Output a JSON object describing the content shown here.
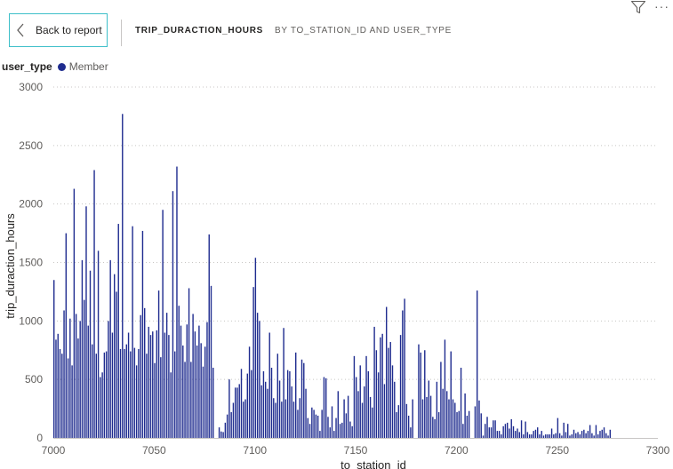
{
  "header": {
    "back_label": "Back to report",
    "title": "TRIP_DURACTION_HOURS",
    "subtitle": "BY TO_STATION_ID AND USER_TYPE",
    "back_icon": "chevron-left-icon",
    "filter_icon": "filter-icon",
    "more_icon": "more-options-icon",
    "more_glyph": "···"
  },
  "legend": {
    "title": "user_type",
    "items": [
      {
        "label": "Member",
        "color": "#1f2c8f"
      }
    ]
  },
  "chart_data": {
    "type": "bar",
    "xlabel": "to_station_id",
    "ylabel": "trip_duraction_hours",
    "xlim": [
      7000,
      7300
    ],
    "ylim": [
      0,
      3000
    ],
    "xticks": [
      7000,
      7050,
      7100,
      7150,
      7200,
      7250,
      7300
    ],
    "yticks": [
      0,
      500,
      1000,
      1500,
      2000,
      2500,
      3000
    ],
    "grid": true,
    "series": [
      {
        "name": "Member",
        "color": "#1f2c8f",
        "points": [
          [
            7000,
            1350
          ],
          [
            7001,
            840
          ],
          [
            7002,
            890
          ],
          [
            7003,
            760
          ],
          [
            7004,
            720
          ],
          [
            7005,
            1090
          ],
          [
            7006,
            1750
          ],
          [
            7007,
            680
          ],
          [
            7008,
            1020
          ],
          [
            7009,
            620
          ],
          [
            7010,
            2130
          ],
          [
            7011,
            1060
          ],
          [
            7012,
            850
          ],
          [
            7013,
            1000
          ],
          [
            7014,
            1520
          ],
          [
            7015,
            1180
          ],
          [
            7016,
            1980
          ],
          [
            7017,
            960
          ],
          [
            7018,
            1430
          ],
          [
            7019,
            800
          ],
          [
            7020,
            2290
          ],
          [
            7021,
            720
          ],
          [
            7022,
            1600
          ],
          [
            7023,
            520
          ],
          [
            7024,
            560
          ],
          [
            7025,
            730
          ],
          [
            7026,
            740
          ],
          [
            7027,
            1000
          ],
          [
            7028,
            1520
          ],
          [
            7029,
            900
          ],
          [
            7030,
            1400
          ],
          [
            7031,
            1250
          ],
          [
            7032,
            1830
          ],
          [
            7033,
            760
          ],
          [
            7034,
            2770
          ],
          [
            7035,
            760
          ],
          [
            7036,
            800
          ],
          [
            7037,
            900
          ],
          [
            7038,
            740
          ],
          [
            7039,
            1810
          ],
          [
            7040,
            770
          ],
          [
            7041,
            620
          ],
          [
            7042,
            760
          ],
          [
            7043,
            1050
          ],
          [
            7044,
            1770
          ],
          [
            7045,
            1110
          ],
          [
            7046,
            720
          ],
          [
            7047,
            950
          ],
          [
            7048,
            880
          ],
          [
            7049,
            910
          ],
          [
            7050,
            640
          ],
          [
            7051,
            920
          ],
          [
            7052,
            1260
          ],
          [
            7053,
            690
          ],
          [
            7054,
            1950
          ],
          [
            7055,
            900
          ],
          [
            7056,
            1070
          ],
          [
            7057,
            880
          ],
          [
            7058,
            560
          ],
          [
            7059,
            2110
          ],
          [
            7060,
            740
          ],
          [
            7061,
            2320
          ],
          [
            7062,
            1130
          ],
          [
            7063,
            960
          ],
          [
            7064,
            790
          ],
          [
            7065,
            650
          ],
          [
            7066,
            970
          ],
          [
            7067,
            1280
          ],
          [
            7068,
            650
          ],
          [
            7069,
            1060
          ],
          [
            7070,
            910
          ],
          [
            7071,
            790
          ],
          [
            7072,
            960
          ],
          [
            7073,
            810
          ],
          [
            7074,
            610
          ],
          [
            7075,
            780
          ],
          [
            7076,
            990
          ],
          [
            7077,
            1740
          ],
          [
            7078,
            1300
          ],
          [
            7079,
            600
          ],
          [
            7082,
            90
          ],
          [
            7083,
            55
          ],
          [
            7084,
            50
          ],
          [
            7085,
            130
          ],
          [
            7086,
            200
          ],
          [
            7087,
            500
          ],
          [
            7088,
            220
          ],
          [
            7089,
            300
          ],
          [
            7090,
            430
          ],
          [
            7091,
            430
          ],
          [
            7092,
            460
          ],
          [
            7093,
            590
          ],
          [
            7094,
            310
          ],
          [
            7095,
            330
          ],
          [
            7096,
            550
          ],
          [
            7097,
            780
          ],
          [
            7098,
            580
          ],
          [
            7099,
            1290
          ],
          [
            7100,
            1540
          ],
          [
            7101,
            1070
          ],
          [
            7102,
            1000
          ],
          [
            7103,
            450
          ],
          [
            7104,
            570
          ],
          [
            7105,
            480
          ],
          [
            7106,
            420
          ],
          [
            7107,
            900
          ],
          [
            7108,
            600
          ],
          [
            7109,
            340
          ],
          [
            7110,
            300
          ],
          [
            7111,
            720
          ],
          [
            7112,
            490
          ],
          [
            7113,
            310
          ],
          [
            7114,
            940
          ],
          [
            7115,
            330
          ],
          [
            7116,
            580
          ],
          [
            7117,
            570
          ],
          [
            7118,
            440
          ],
          [
            7119,
            310
          ],
          [
            7120,
            730
          ],
          [
            7121,
            240
          ],
          [
            7122,
            340
          ],
          [
            7123,
            670
          ],
          [
            7124,
            640
          ],
          [
            7125,
            420
          ],
          [
            7126,
            170
          ],
          [
            7127,
            120
          ],
          [
            7128,
            260
          ],
          [
            7129,
            240
          ],
          [
            7130,
            200
          ],
          [
            7131,
            190
          ],
          [
            7132,
            60
          ],
          [
            7133,
            240
          ],
          [
            7134,
            520
          ],
          [
            7135,
            510
          ],
          [
            7136,
            180
          ],
          [
            7137,
            90
          ],
          [
            7138,
            270
          ],
          [
            7139,
            60
          ],
          [
            7140,
            170
          ],
          [
            7141,
            400
          ],
          [
            7142,
            120
          ],
          [
            7143,
            130
          ],
          [
            7144,
            330
          ],
          [
            7145,
            210
          ],
          [
            7146,
            360
          ],
          [
            7147,
            140
          ],
          [
            7148,
            100
          ],
          [
            7149,
            700
          ],
          [
            7150,
            520
          ],
          [
            7151,
            400
          ],
          [
            7152,
            620
          ],
          [
            7153,
            300
          ],
          [
            7154,
            440
          ],
          [
            7155,
            700
          ],
          [
            7156,
            570
          ],
          [
            7157,
            350
          ],
          [
            7158,
            260
          ],
          [
            7159,
            950
          ],
          [
            7160,
            750
          ],
          [
            7161,
            560
          ],
          [
            7162,
            860
          ],
          [
            7163,
            890
          ],
          [
            7164,
            460
          ],
          [
            7165,
            1120
          ],
          [
            7166,
            770
          ],
          [
            7167,
            820
          ],
          [
            7168,
            620
          ],
          [
            7169,
            480
          ],
          [
            7170,
            220
          ],
          [
            7171,
            280
          ],
          [
            7172,
            880
          ],
          [
            7173,
            1090
          ],
          [
            7174,
            1190
          ],
          [
            7175,
            290
          ],
          [
            7176,
            190
          ],
          [
            7177,
            90
          ],
          [
            7178,
            330
          ],
          [
            7181,
            800
          ],
          [
            7182,
            730
          ],
          [
            7183,
            330
          ],
          [
            7184,
            750
          ],
          [
            7185,
            350
          ],
          [
            7186,
            490
          ],
          [
            7187,
            360
          ],
          [
            7188,
            180
          ],
          [
            7189,
            160
          ],
          [
            7190,
            480
          ],
          [
            7191,
            220
          ],
          [
            7192,
            650
          ],
          [
            7193,
            420
          ],
          [
            7194,
            840
          ],
          [
            7195,
            400
          ],
          [
            7196,
            330
          ],
          [
            7197,
            740
          ],
          [
            7198,
            330
          ],
          [
            7199,
            300
          ],
          [
            7200,
            220
          ],
          [
            7201,
            230
          ],
          [
            7202,
            600
          ],
          [
            7203,
            120
          ],
          [
            7204,
            380
          ],
          [
            7205,
            190
          ],
          [
            7206,
            230
          ],
          [
            7209,
            270
          ],
          [
            7210,
            1260
          ],
          [
            7211,
            320
          ],
          [
            7212,
            210
          ],
          [
            7213,
            20
          ],
          [
            7214,
            120
          ],
          [
            7215,
            180
          ],
          [
            7216,
            90
          ],
          [
            7217,
            90
          ],
          [
            7218,
            150
          ],
          [
            7219,
            150
          ],
          [
            7220,
            60
          ],
          [
            7221,
            60
          ],
          [
            7222,
            30
          ],
          [
            7223,
            100
          ],
          [
            7224,
            120
          ],
          [
            7225,
            130
          ],
          [
            7226,
            80
          ],
          [
            7227,
            160
          ],
          [
            7228,
            100
          ],
          [
            7229,
            60
          ],
          [
            7230,
            80
          ],
          [
            7231,
            50
          ],
          [
            7232,
            150
          ],
          [
            7233,
            30
          ],
          [
            7234,
            140
          ],
          [
            7235,
            50
          ],
          [
            7236,
            30
          ],
          [
            7237,
            30
          ],
          [
            7238,
            60
          ],
          [
            7239,
            70
          ],
          [
            7240,
            90
          ],
          [
            7241,
            30
          ],
          [
            7242,
            60
          ],
          [
            7243,
            20
          ],
          [
            7244,
            30
          ],
          [
            7245,
            30
          ],
          [
            7246,
            30
          ],
          [
            7247,
            80
          ],
          [
            7248,
            30
          ],
          [
            7249,
            40
          ],
          [
            7250,
            170
          ],
          [
            7251,
            40
          ],
          [
            7252,
            20
          ],
          [
            7253,
            130
          ],
          [
            7254,
            50
          ],
          [
            7255,
            120
          ],
          [
            7256,
            20
          ],
          [
            7257,
            30
          ],
          [
            7258,
            70
          ],
          [
            7259,
            40
          ],
          [
            7260,
            50
          ],
          [
            7261,
            30
          ],
          [
            7262,
            60
          ],
          [
            7263,
            70
          ],
          [
            7264,
            40
          ],
          [
            7265,
            60
          ],
          [
            7266,
            110
          ],
          [
            7267,
            40
          ],
          [
            7268,
            20
          ],
          [
            7269,
            110
          ],
          [
            7270,
            30
          ],
          [
            7271,
            60
          ],
          [
            7272,
            70
          ],
          [
            7273,
            90
          ],
          [
            7274,
            40
          ],
          [
            7275,
            20
          ],
          [
            7276,
            70
          ]
        ]
      }
    ]
  }
}
